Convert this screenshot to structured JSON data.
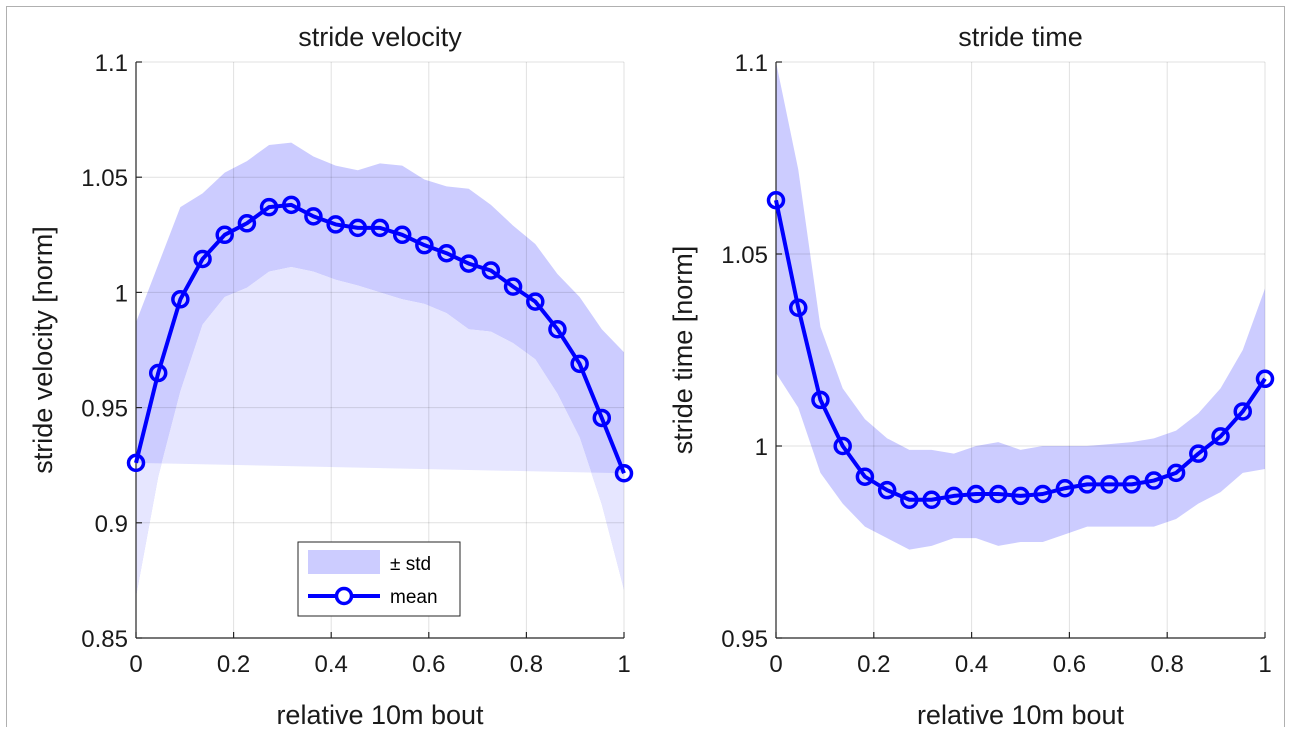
{
  "chart_data": [
    {
      "type": "line",
      "title": "stride velocity",
      "xlabel": "relative 10m bout",
      "ylabel": "stride velocity [norm]",
      "xlim": [
        0,
        1
      ],
      "ylim": [
        0.85,
        1.1
      ],
      "xticks": [
        "0",
        "0.2",
        "0.4",
        "0.6",
        "0.8",
        "1"
      ],
      "yticks": [
        "0.85",
        "0.9",
        "0.95",
        "1",
        "1.05",
        "1.1"
      ],
      "grid": true,
      "x": [
        0,
        0.0455,
        0.0909,
        0.1364,
        0.1818,
        0.2273,
        0.2727,
        0.3182,
        0.3636,
        0.4091,
        0.4545,
        0.5,
        0.5455,
        0.5909,
        0.6364,
        0.6818,
        0.7273,
        0.7727,
        0.8182,
        0.8636,
        0.9091,
        0.9545,
        1
      ],
      "series": [
        {
          "name": "mean",
          "color": "#0000ff",
          "values": [
            0.926,
            0.965,
            0.997,
            1.0145,
            1.025,
            1.03,
            1.037,
            1.038,
            1.033,
            1.0295,
            1.028,
            1.028,
            1.025,
            1.0205,
            1.017,
            1.0125,
            1.0095,
            1.0025,
            0.996,
            0.984,
            0.969,
            0.9455,
            0.9215
          ]
        }
      ],
      "band": {
        "name": "± std",
        "color": "#ccccff",
        "upper": [
          0.987,
          1.012,
          1.037,
          1.043,
          1.052,
          1.057,
          1.064,
          1.065,
          1.059,
          1.055,
          1.053,
          1.056,
          1.055,
          1.049,
          1.046,
          1.045,
          1.038,
          1.029,
          1.021,
          1.008,
          0.998,
          0.984,
          0.974
        ],
        "lower": [
          0.868,
          0.92,
          0.957,
          0.986,
          0.998,
          1.002,
          1.009,
          1.011,
          1.009,
          1.0055,
          1.003,
          1.0,
          0.997,
          0.995,
          0.991,
          0.984,
          0.983,
          0.978,
          0.971,
          0.956,
          0.937,
          0.908,
          0.871
        ]
      },
      "legend": {
        "placement": "bottom-center",
        "entries": [
          "± std",
          "mean"
        ]
      }
    },
    {
      "type": "line",
      "title": "stride time",
      "xlabel": "relative 10m bout",
      "ylabel": "stride time [norm]",
      "xlim": [
        0,
        1
      ],
      "ylim": [
        0.95,
        1.1
      ],
      "xticks": [
        "0",
        "0.2",
        "0.4",
        "0.6",
        "0.8",
        "1"
      ],
      "yticks": [
        "0.95",
        "1",
        "1.05",
        "1.1"
      ],
      "grid": true,
      "x": [
        0,
        0.0455,
        0.0909,
        0.1364,
        0.1818,
        0.2273,
        0.2727,
        0.3182,
        0.3636,
        0.4091,
        0.4545,
        0.5,
        0.5455,
        0.5909,
        0.6364,
        0.6818,
        0.7273,
        0.7727,
        0.8182,
        0.8636,
        0.9091,
        0.9545,
        1
      ],
      "series": [
        {
          "name": "mean",
          "color": "#0000ff",
          "values": [
            1.064,
            1.036,
            1.012,
            1.0,
            0.992,
            0.9885,
            0.986,
            0.986,
            0.987,
            0.9875,
            0.9875,
            0.987,
            0.9875,
            0.989,
            0.99,
            0.99,
            0.99,
            0.991,
            0.993,
            0.998,
            1.0025,
            1.009,
            1.0175
          ]
        }
      ],
      "band": {
        "name": "± std",
        "color": "#ccccff",
        "upper": [
          1.1,
          1.072,
          1.031,
          1.015,
          1.007,
          1.002,
          0.999,
          0.999,
          0.998,
          1.0,
          1.001,
          0.999,
          1.0,
          1.0,
          1.0,
          1.0005,
          1.001,
          1.002,
          1.004,
          1.0085,
          1.015,
          1.025,
          1.041
        ],
        "lower": [
          1.019,
          1.01,
          0.993,
          0.985,
          0.979,
          0.976,
          0.973,
          0.974,
          0.976,
          0.976,
          0.974,
          0.975,
          0.975,
          0.977,
          0.979,
          0.979,
          0.979,
          0.979,
          0.981,
          0.985,
          0.988,
          0.993,
          0.994
        ]
      }
    }
  ]
}
